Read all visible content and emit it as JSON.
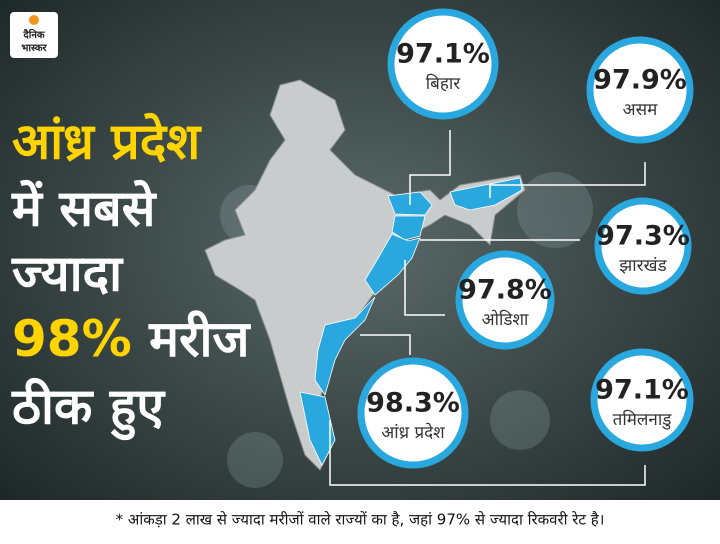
{
  "logo": {
    "line1": "दैनिक",
    "line2": "भास्कर"
  },
  "headline": {
    "line1": "आंध्र प्रदेश",
    "line2": "में सबसे",
    "line3": "ज्यादा",
    "line4_highlight": "98%",
    "line4_rest": "मरीज",
    "line5": "ठीक हुए"
  },
  "states": [
    {
      "value": "97.1%",
      "name": "बिहार"
    },
    {
      "value": "97.9%",
      "name": "असम"
    },
    {
      "value": "97.3%",
      "name": "झारखंड"
    },
    {
      "value": "97.8%",
      "name": "ओडिशा"
    },
    {
      "value": "98.3%",
      "name": "आंध्र प्रदेश"
    },
    {
      "value": "97.1%",
      "name": "तमिलनाडु"
    }
  ],
  "footnote": "* आंकड़ा 2 लाख से ज्यादा मरीजों वाले राज्यों का है, जहां 97% से ज्यादा रिकवरी रेट है।"
}
